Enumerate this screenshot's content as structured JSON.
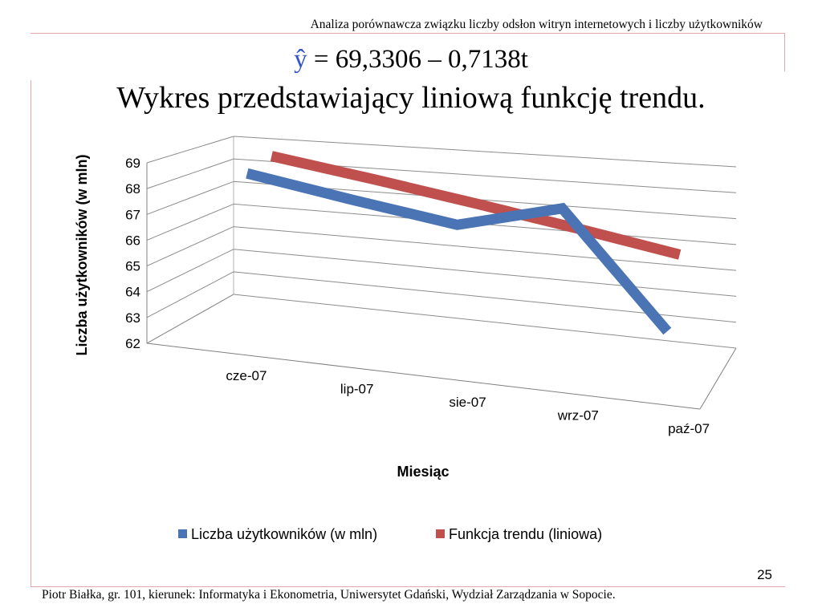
{
  "slide": {
    "header": "Analiza porównawcza związku liczby odsłon witryn internetowych i liczby użytkowników",
    "formula_symbol": "ŷ",
    "formula_rest": " = 69,3306 – 0,7138t",
    "title": "Wykres przedstawiający liniową funkcję trendu.",
    "page_number": "25",
    "footer": "Piotr Białka, gr. 101, kierunek: Informatyka i Ekonometria, Uniwersytet Gdański, Wydział Zarządzania w Sopocie."
  },
  "chart_data": {
    "type": "line",
    "style": "3d",
    "categories": [
      "cze-07",
      "lip-07",
      "sie-07",
      "wrz-07",
      "paź-07"
    ],
    "series": [
      {
        "name": "Liczba użytkowników  (w mln)",
        "color": "#4a74b4",
        "values": [
          68.5,
          67.7,
          67.0,
          68.0,
          63.5
        ]
      },
      {
        "name": "Funkcja trendu  (liniowa)",
        "color": "#c0504d",
        "values": [
          68.6,
          67.9,
          67.2,
          66.5,
          65.8
        ]
      }
    ],
    "ylim": [
      62,
      69
    ],
    "yticks": [
      62,
      63,
      64,
      65,
      66,
      67,
      68,
      69
    ],
    "xlabel": "Miesiąc",
    "ylabel": "Liczba użytkowników  (w mln)",
    "grid": true,
    "legend": "bottom"
  }
}
